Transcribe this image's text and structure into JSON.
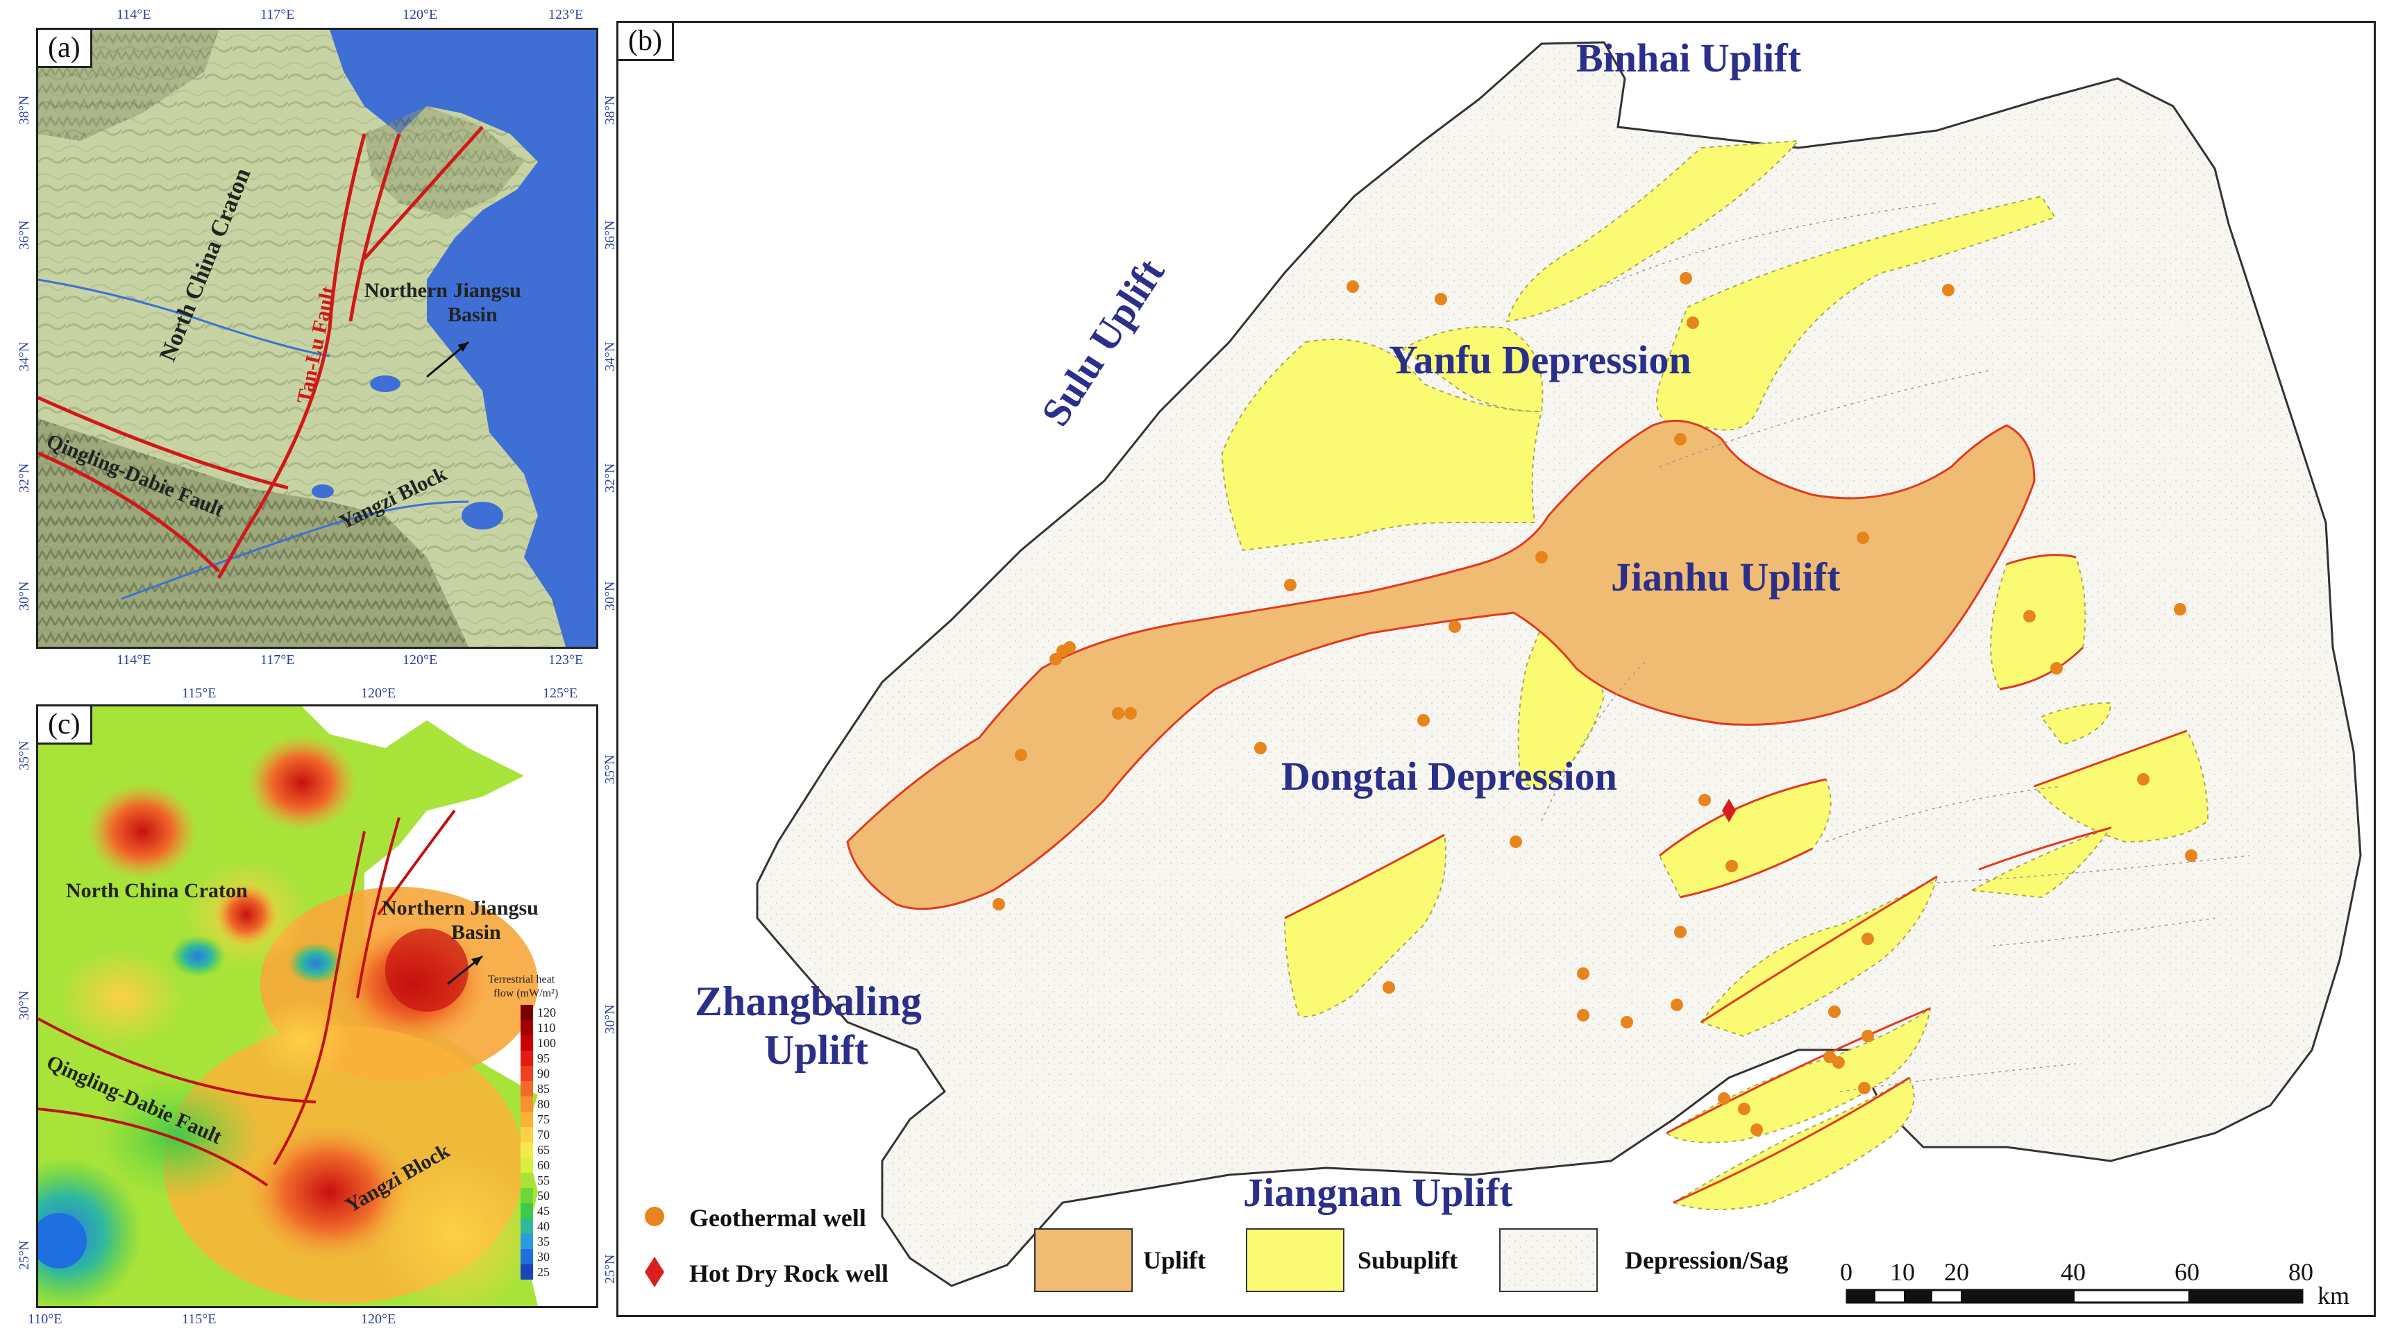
{
  "panel_a": {
    "tag": "(a)",
    "lon_ticks": [
      "114°E",
      "117°E",
      "120°E",
      "123°E"
    ],
    "lat_ticks": [
      "38°N",
      "36°N",
      "34°N",
      "32°N",
      "30°N"
    ],
    "labels": {
      "craton": "North China Craton",
      "fault": "Tan-Lu Fault",
      "basin_line1": "Northern Jiangsu",
      "basin_line2": "Basin",
      "qinling": "Qingling-Dabie Fault",
      "yangzi": "Yangzi Block"
    }
  },
  "panel_c": {
    "tag": "(c)",
    "lon_ticks": [
      "110°E",
      "115°E",
      "120°E",
      "125°E"
    ],
    "lat_ticks": [
      "35°N",
      "30°N",
      "25°N"
    ],
    "labels": {
      "craton": "North China Craton",
      "basin_line1": "Northern Jiangsu",
      "basin_line2": "Basin",
      "qinling": "Qingling-Dabie Fault",
      "yangzi": "Yangzi Block"
    },
    "legend_title_1": "Terrestrial heat",
    "legend_title_2": "flow (mW/m²)",
    "legend_values": [
      "120",
      "110",
      "100",
      "95",
      "90",
      "85",
      "80",
      "75",
      "70",
      "65",
      "60",
      "55",
      "50",
      "45",
      "40",
      "35",
      "30",
      "25"
    ],
    "legend_colors": [
      "#7a0000",
      "#a00000",
      "#c80000",
      "#e41a10",
      "#f04020",
      "#f56a2a",
      "#f89030",
      "#fbb13a",
      "#fdd045",
      "#f5e84a",
      "#d8ef3e",
      "#a8e33a",
      "#6fd63a",
      "#3ec94a",
      "#2fb8a0",
      "#2a9be0",
      "#1f6fe0",
      "#1a44c0"
    ]
  },
  "panel_b": {
    "tag": "(b)",
    "labels": {
      "binhai": "Binhai Uplift",
      "sulu": "Sulu Uplift",
      "yanfu": "Yanfu Depression",
      "jianhu": "Jianhu Uplift",
      "dongtai": "Dongtai Depression",
      "zhangbaling_1": "Zhangbaling",
      "zhangbaling_2": "Uplift",
      "jiangnan": "Jiangnan Uplift"
    },
    "legend": {
      "geothermal": "Geothermal well",
      "hdr": "Hot Dry Rock well",
      "uplift": "Uplift",
      "subuplift": "Subuplift",
      "depression": "Depression/Sag"
    },
    "scale_ticks": [
      "0",
      "10",
      "20",
      "40",
      "60",
      "80"
    ],
    "scale_unit": "km",
    "colors": {
      "uplift": "#f0bb73",
      "subuplift": "#fbfb73",
      "basin": "#f8f6f0",
      "boundary": "#e03a20",
      "well": "#e8841c",
      "hdr": "#d81e1e",
      "label": "#2a2f8a"
    }
  }
}
